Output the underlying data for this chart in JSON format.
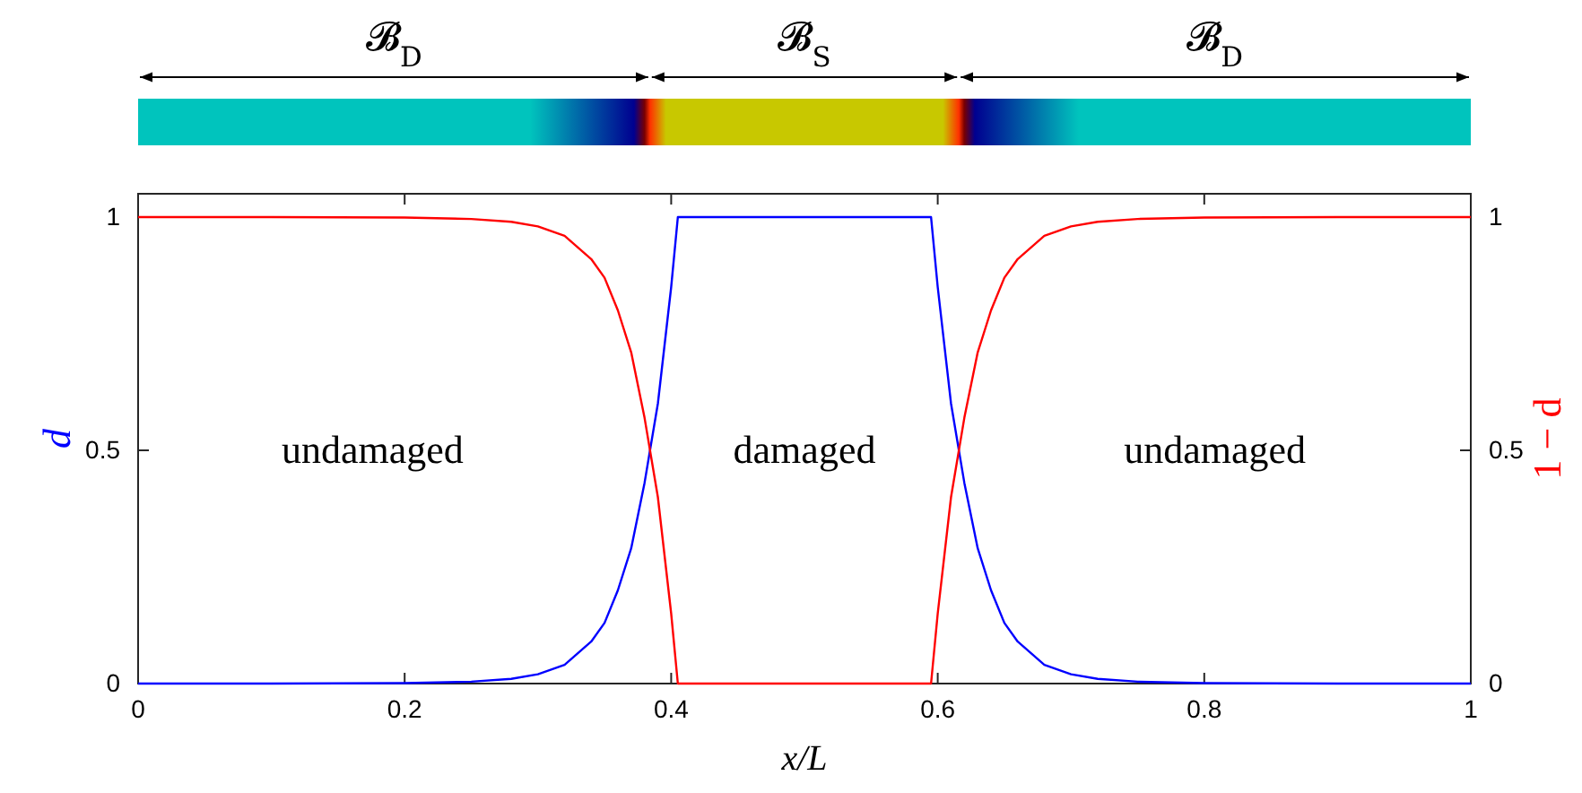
{
  "chart_data": {
    "type": "line",
    "xlabel": "x/L",
    "ylabel": "d",
    "y2label": "1 − d",
    "x": [
      0,
      0.1,
      0.2,
      0.25,
      0.28,
      0.3,
      0.32,
      0.34,
      0.35,
      0.36,
      0.37,
      0.38,
      0.39,
      0.4,
      0.405,
      0.5,
      0.595,
      0.6,
      0.61,
      0.62,
      0.63,
      0.64,
      0.65,
      0.66,
      0.68,
      0.7,
      0.72,
      0.75,
      0.8,
      0.9,
      1
    ],
    "series": [
      {
        "color": "#0000ff",
        "values": [
          0,
          0,
          0.001,
          0.004,
          0.01,
          0.02,
          0.04,
          0.09,
          0.13,
          0.2,
          0.29,
          0.43,
          0.6,
          0.85,
          1,
          1,
          1,
          0.85,
          0.6,
          0.43,
          0.29,
          0.2,
          0.13,
          0.09,
          0.04,
          0.02,
          0.01,
          0.004,
          0.001,
          0,
          0
        ]
      },
      {
        "color": "#ff0000",
        "axis": "y2",
        "values": [
          1,
          1,
          0.999,
          0.996,
          0.99,
          0.98,
          0.96,
          0.91,
          0.87,
          0.8,
          0.71,
          0.57,
          0.4,
          0.15,
          0,
          0,
          0,
          0.15,
          0.4,
          0.57,
          0.71,
          0.8,
          0.87,
          0.91,
          0.96,
          0.98,
          0.99,
          0.996,
          0.999,
          1,
          1
        ]
      }
    ],
    "xlim": [
      0,
      1
    ],
    "xticks": [
      0,
      0.2,
      0.4,
      0.6,
      0.8,
      1
    ],
    "ylim": [
      0,
      1.05
    ],
    "yticks": [
      0,
      0.5,
      1
    ],
    "y2lim": [
      0,
      1.05
    ],
    "y2ticks": [
      0,
      0.5,
      1
    ],
    "grid": false,
    "annotations": [
      "𝓑$_{D}$",
      "𝓑$_{S}$",
      "𝓑$_{D}$",
      "undamaged",
      "damaged",
      "undamaged"
    ]
  }
}
